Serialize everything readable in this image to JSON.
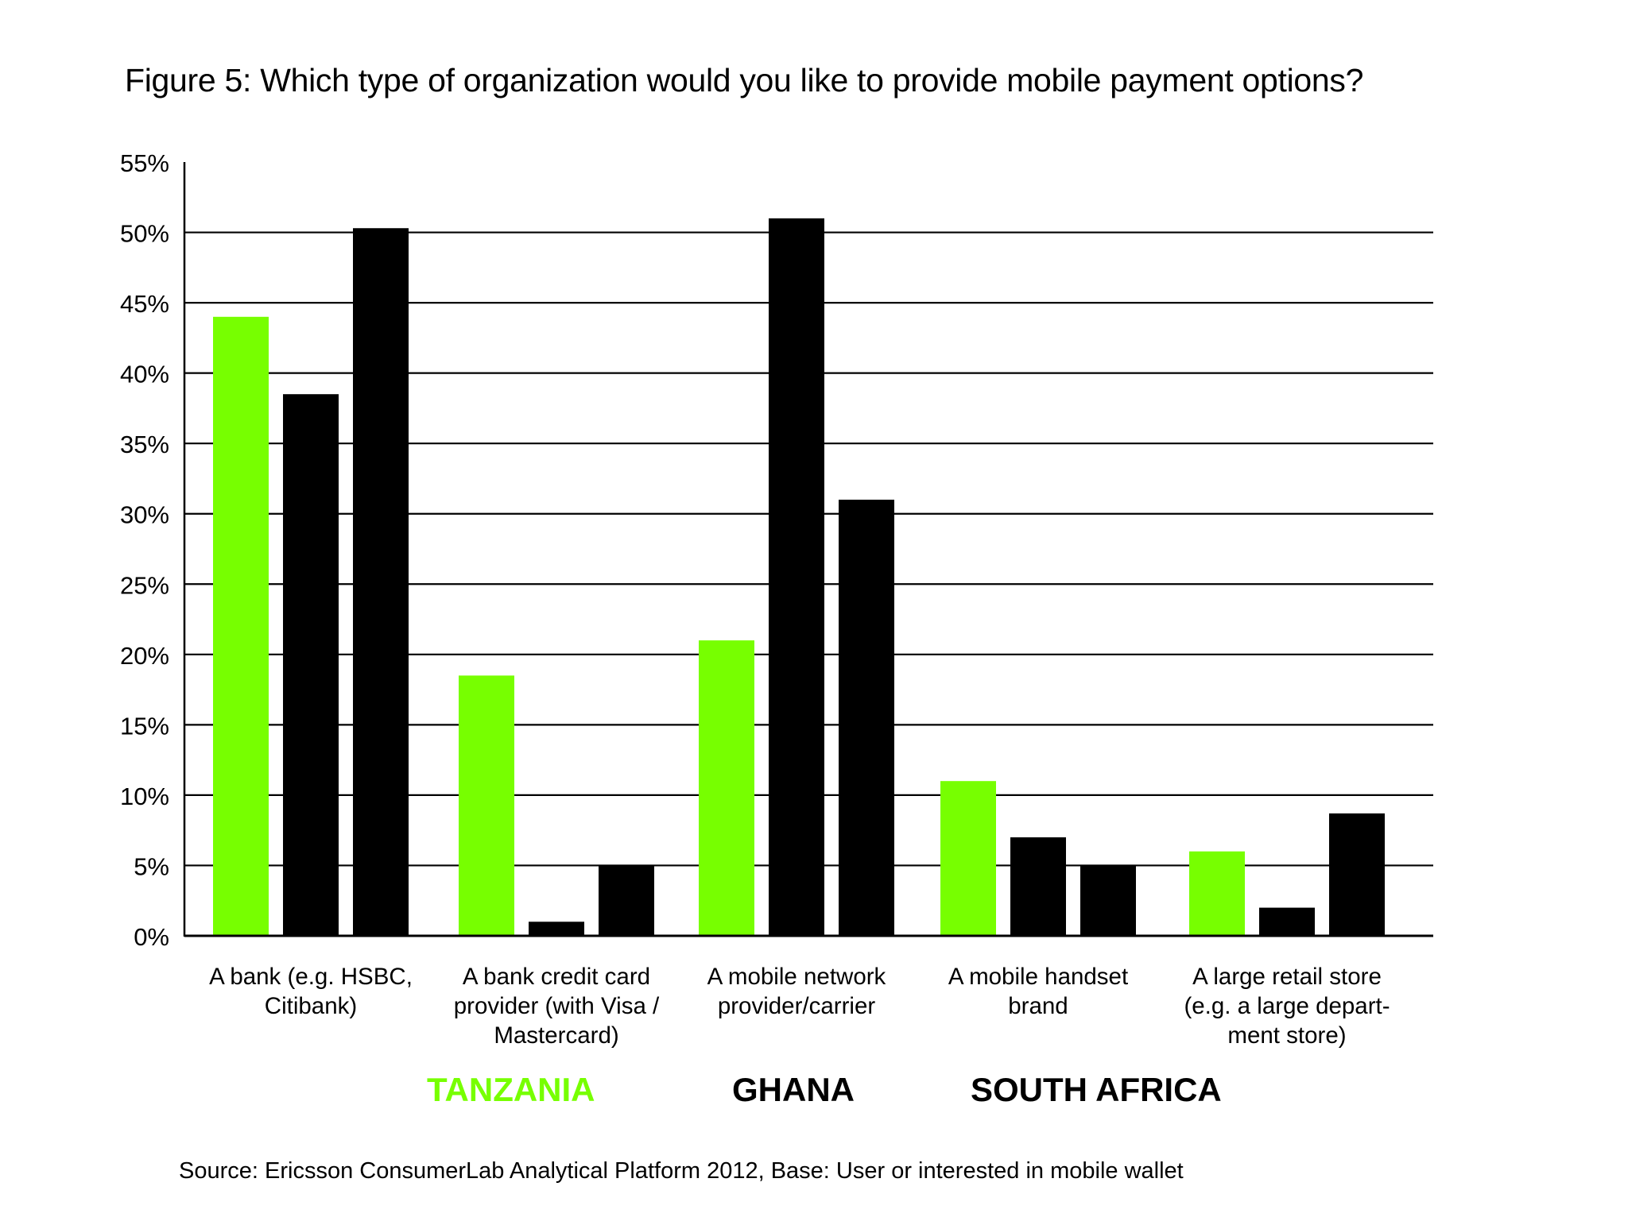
{
  "title": "Figure 5: Which type of organization would you like to provide mobile payment options?",
  "source": "Source: Ericsson ConsumerLab Analytical Platform 2012, Base: User or interested in mobile wallet",
  "colors": {
    "tanzania": "#77ff00",
    "ghana": "#000000",
    "south_africa": "#000000",
    "gridline": "#000000",
    "background": "#ffffff"
  },
  "chart_data": {
    "type": "bar",
    "title": "Figure 5: Which type of organization would you like to provide mobile payment options?",
    "categories": [
      [
        "A bank (e.g. HSBC,",
        "Citibank)"
      ],
      [
        "A bank credit card",
        "provider (with Visa /",
        "Mastercard)"
      ],
      [
        "A mobile network",
        "provider/carrier"
      ],
      [
        "A mobile handset",
        "brand"
      ],
      [
        "A large retail store",
        "(e.g. a large depart-",
        "ment store)"
      ]
    ],
    "series": [
      {
        "name": "TANZANIA",
        "color": "#77ff00",
        "values": [
          44,
          18.5,
          21,
          11,
          6
        ]
      },
      {
        "name": "GHANA",
        "color": "#000000",
        "values": [
          38.5,
          1,
          51,
          7,
          2
        ]
      },
      {
        "name": "SOUTH AFRICA",
        "color": "#000000",
        "values": [
          50.3,
          5,
          31,
          5,
          8.7
        ]
      }
    ],
    "ylim": [
      0,
      55
    ],
    "yticks": [
      0,
      5,
      10,
      15,
      20,
      25,
      30,
      35,
      40,
      45,
      50,
      55
    ],
    "ytick_labels": [
      "0%",
      "5%",
      "10%",
      "15%",
      "20%",
      "25%",
      "30%",
      "35%",
      "40%",
      "45%",
      "50%",
      "55%"
    ],
    "grid": true,
    "legend_position": "bottom"
  }
}
